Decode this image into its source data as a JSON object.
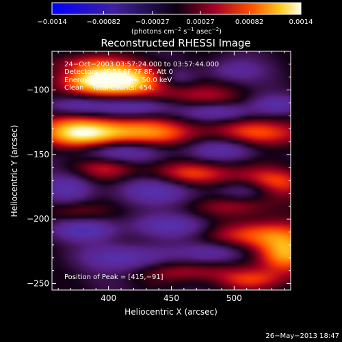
{
  "chart_data": {
    "type": "heatmap",
    "title": "Reconstructed RHESSI Image",
    "xlabel": "Heliocentric X (arcsec)",
    "ylabel": "Heliocentric Y (arcsec)",
    "xlim": [
      355,
      545
    ],
    "ylim": [
      -255,
      -70
    ],
    "x_ticks": [
      400,
      450,
      500
    ],
    "x_tick_labels": [
      "400",
      "450",
      "500"
    ],
    "y_ticks": [
      -100,
      -150,
      -200,
      -250
    ],
    "y_tick_labels": [
      "−100",
      "−150",
      "−200",
      "−250"
    ],
    "colorbar": {
      "range": [
        -0.0014,
        0.0014
      ],
      "ticks": [
        -0.0014,
        -0.00082,
        -0.00027,
        0.00027,
        0.00082,
        0.0014
      ],
      "tick_labels": [
        "−0.0014",
        "−0.00082",
        "−0.00027",
        "0.00027",
        "0.00082",
        "0.0014"
      ],
      "unit_prefix": "(photons cm",
      "unit_exp1": "−2",
      "unit_mid1": " s",
      "unit_exp2": "−1",
      "unit_mid2": " asec",
      "unit_exp3": "−2",
      "unit_suffix": ")"
    },
    "annotations": [
      "24−Oct−2003 03:57:24.000 to 03:57:44.000",
      "Detectors: 4F 5F 6F 7F 8F, Att 0",
      "Energy Range: 25.0 − 50.0 keV",
      "Clean    Total Counts: 454."
    ],
    "peak_label": "Position of Peak = [415,−91]",
    "peak": [
      415,
      -91
    ],
    "blobs": [
      {
        "x": 410,
        "y": -92,
        "sx": 24,
        "sy": 9,
        "a": 1.0
      },
      {
        "x": 385,
        "y": -93,
        "sx": 16,
        "sy": 8,
        "a": 0.55
      },
      {
        "x": 378,
        "y": -133,
        "sx": 26,
        "sy": 9,
        "a": 0.92
      },
      {
        "x": 432,
        "y": -133,
        "sx": 30,
        "sy": 8,
        "a": 0.62
      },
      {
        "x": 525,
        "y": -133,
        "sx": 28,
        "sy": 8,
        "a": 0.55
      },
      {
        "x": 470,
        "y": -105,
        "sx": 22,
        "sy": 7,
        "a": 0.38
      },
      {
        "x": 400,
        "y": -160,
        "sx": 18,
        "sy": 7,
        "a": 0.42
      },
      {
        "x": 470,
        "y": -165,
        "sx": 24,
        "sy": 7,
        "a": 0.52
      },
      {
        "x": 530,
        "y": -172,
        "sx": 22,
        "sy": 8,
        "a": 0.58
      },
      {
        "x": 500,
        "y": -190,
        "sx": 20,
        "sy": 6,
        "a": 0.35
      },
      {
        "x": 375,
        "y": -195,
        "sx": 16,
        "sy": 6,
        "a": 0.3
      },
      {
        "x": 520,
        "y": -212,
        "sx": 26,
        "sy": 8,
        "a": 0.62
      },
      {
        "x": 540,
        "y": -228,
        "sx": 16,
        "sy": 10,
        "a": 0.78
      },
      {
        "x": 460,
        "y": -240,
        "sx": 24,
        "sy": 6,
        "a": 0.4
      },
      {
        "x": 515,
        "y": -247,
        "sx": 20,
        "sy": 6,
        "a": 0.45
      },
      {
        "x": 380,
        "y": -78,
        "sx": 18,
        "sy": 5,
        "a": 0.3
      },
      {
        "x": 372,
        "y": -112,
        "sx": 16,
        "sy": 5,
        "a": -0.45
      },
      {
        "x": 420,
        "y": -113,
        "sx": 22,
        "sy": 5,
        "a": -0.58
      },
      {
        "x": 488,
        "y": -117,
        "sx": 20,
        "sy": 5,
        "a": -0.52
      },
      {
        "x": 535,
        "y": -111,
        "sx": 14,
        "sy": 5,
        "a": -0.42
      },
      {
        "x": 408,
        "y": -148,
        "sx": 26,
        "sy": 6,
        "a": -0.58
      },
      {
        "x": 492,
        "y": -146,
        "sx": 20,
        "sy": 6,
        "a": -0.48
      },
      {
        "x": 440,
        "y": -178,
        "sx": 22,
        "sy": 7,
        "a": -0.52
      },
      {
        "x": 368,
        "y": -176,
        "sx": 14,
        "sy": 7,
        "a": -0.48
      },
      {
        "x": 512,
        "y": -177,
        "sx": 16,
        "sy": 6,
        "a": -0.42
      },
      {
        "x": 380,
        "y": -208,
        "sx": 18,
        "sy": 6,
        "a": -0.58
      },
      {
        "x": 450,
        "y": -205,
        "sx": 22,
        "sy": 6,
        "a": -0.5
      },
      {
        "x": 415,
        "y": -230,
        "sx": 24,
        "sy": 7,
        "a": -0.55
      },
      {
        "x": 485,
        "y": -226,
        "sx": 18,
        "sy": 6,
        "a": -0.45
      },
      {
        "x": 500,
        "y": -85,
        "sx": 16,
        "sy": 6,
        "a": -0.36
      },
      {
        "x": 455,
        "y": -90,
        "sx": 10,
        "sy": 5,
        "a": -0.28
      }
    ]
  },
  "footer": {
    "date": "26−May−2013 18:47"
  }
}
